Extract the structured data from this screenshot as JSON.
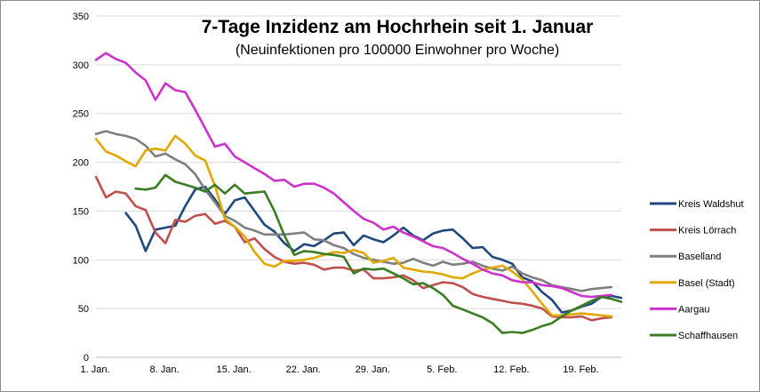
{
  "chart_data": {
    "type": "line",
    "title": "7-Tage Inzidenz am Hochrhein seit 1. Januar",
    "subtitle": "(Neuinfektionen pro 100000 Einwohner pro Woche)",
    "xlabel": "",
    "ylabel": "",
    "ylim": [
      0,
      350
    ],
    "yticks": [
      0,
      50,
      100,
      150,
      200,
      250,
      300,
      350
    ],
    "xlim": [
      0,
      53
    ],
    "xticks": [
      {
        "day": 0,
        "label": "1. Jan."
      },
      {
        "day": 7,
        "label": "8. Jan."
      },
      {
        "day": 14,
        "label": "15. Jan."
      },
      {
        "day": 21,
        "label": "22. Jan."
      },
      {
        "day": 28,
        "label": "29. Jan."
      },
      {
        "day": 35,
        "label": "5. Feb."
      },
      {
        "day": 42,
        "label": "12. Feb."
      },
      {
        "day": 49,
        "label": "19. Feb."
      }
    ],
    "grid": true,
    "legend_position": "right",
    "series": [
      {
        "name": "Kreis Waldshut",
        "color": "#1f497d",
        "start": 3,
        "values": [
          148,
          135,
          109,
          131,
          133,
          135,
          155,
          172,
          175,
          162,
          147,
          161,
          164,
          150,
          136,
          129,
          117,
          109,
          116,
          114,
          120,
          127,
          128,
          115,
          125,
          121,
          118,
          125,
          133,
          125,
          120,
          127,
          130,
          131,
          122,
          112,
          113,
          103,
          100,
          96,
          82,
          78,
          67,
          59,
          46,
          48,
          52,
          55,
          62,
          63,
          61
        ]
      },
      {
        "name": "Kreis Lörrach",
        "color": "#c0504d",
        "start": 0,
        "values": [
          185,
          164,
          170,
          168,
          155,
          151,
          128,
          117,
          141,
          139,
          145,
          147,
          137,
          140,
          134,
          118,
          122,
          111,
          103,
          98,
          96,
          97,
          95,
          90,
          92,
          92,
          89,
          90,
          81,
          81,
          82,
          84,
          79,
          71,
          74,
          77,
          76,
          72,
          65,
          62,
          60,
          58,
          56,
          55,
          53,
          50,
          42,
          41,
          41,
          42,
          38,
          40,
          41
        ]
      },
      {
        "name": "Baselland",
        "color": "#7f7f7f",
        "start": 0,
        "values": [
          229,
          232,
          229,
          227,
          224,
          217,
          206,
          209,
          203,
          198,
          188,
          172,
          159,
          145,
          140,
          133,
          130,
          126,
          126,
          126,
          127,
          128,
          121,
          120,
          115,
          112,
          106,
          102,
          100,
          98,
          96,
          97,
          101,
          97,
          94,
          98,
          95,
          96,
          98,
          94,
          91,
          89,
          93,
          86,
          82,
          79,
          74,
          72,
          70,
          68,
          70,
          71,
          72
        ]
      },
      {
        "name": "Basel (Stadt)",
        "color": "#e0a800",
        "start": 0,
        "values": [
          224,
          211,
          207,
          201,
          196,
          212,
          214,
          212,
          227,
          219,
          207,
          202,
          176,
          142,
          134,
          124,
          108,
          96,
          93,
          99,
          99,
          100,
          102,
          105,
          108,
          107,
          110,
          107,
          97,
          99,
          102,
          92,
          90,
          88,
          87,
          85,
          82,
          81,
          86,
          90,
          92,
          94,
          88,
          80,
          68,
          55,
          43,
          43,
          44,
          45,
          44,
          43,
          42
        ]
      },
      {
        "name": "Aargau",
        "color": "#cc33cc",
        "start": 0,
        "values": [
          305,
          312,
          306,
          302,
          292,
          284,
          264,
          281,
          274,
          272,
          254,
          235,
          216,
          219,
          206,
          200,
          194,
          188,
          181,
          182,
          175,
          178,
          178,
          174,
          168,
          159,
          150,
          142,
          138,
          131,
          134,
          128,
          124,
          119,
          114,
          112,
          107,
          101,
          96,
          90,
          86,
          84,
          79,
          77,
          77,
          74,
          73,
          71,
          67,
          63,
          62,
          63,
          64
        ]
      },
      {
        "name": "Schaffhausen",
        "color": "#3a7d22",
        "start": 4,
        "values": [
          173,
          172,
          174,
          187,
          180,
          177,
          174,
          170,
          177,
          168,
          177,
          168,
          169,
          170,
          150,
          125,
          105,
          109,
          108,
          106,
          105,
          103,
          86,
          91,
          90,
          91,
          86,
          81,
          75,
          76,
          71,
          64,
          53,
          49,
          45,
          41,
          35,
          25,
          26,
          25,
          28,
          32,
          35,
          42,
          48,
          53,
          58,
          62,
          60,
          57
        ]
      }
    ]
  }
}
